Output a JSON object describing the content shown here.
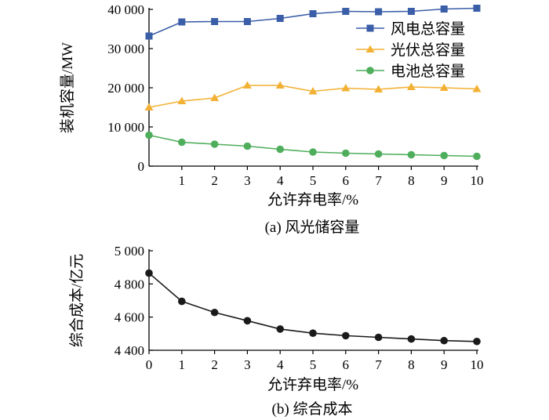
{
  "chart_data": [
    {
      "type": "line",
      "caption": "(a)  风光储容量",
      "xlabel": "允许弃电率/%",
      "ylabel": "装机容量/MW",
      "x": [
        0,
        1,
        2,
        3,
        4,
        5,
        6,
        7,
        8,
        9,
        10
      ],
      "x_tick_labels": [
        "1",
        "2",
        "3",
        "4",
        "5",
        "6",
        "7",
        "8",
        "9",
        "10"
      ],
      "xlim": [
        0,
        10
      ],
      "ylim": [
        0,
        40000
      ],
      "y_ticks": [
        0,
        10000,
        20000,
        30000,
        40000
      ],
      "y_tick_labels": [
        "0",
        "10 000",
        "20 000",
        "30 000",
        "40 000"
      ],
      "grid": false,
      "legend_position": "top-right",
      "series": [
        {
          "name": "风电总容量",
          "marker": "square",
          "color": "#3b5ea8",
          "values": [
            33200,
            36800,
            36900,
            36900,
            37700,
            38900,
            39500,
            39400,
            39500,
            40100,
            40300
          ]
        },
        {
          "name": "光伏总容量",
          "marker": "triangle",
          "color": "#f2b134",
          "values": [
            15000,
            16600,
            17400,
            20600,
            20600,
            19100,
            19900,
            19600,
            20200,
            20000,
            19700
          ]
        },
        {
          "name": "电池总容量",
          "marker": "circle",
          "color": "#4fae5c",
          "values": [
            7900,
            6100,
            5600,
            5100,
            4300,
            3600,
            3300,
            3100,
            2900,
            2700,
            2500
          ]
        }
      ]
    },
    {
      "type": "line",
      "caption": "(b)  综合成本",
      "xlabel": "允许弃电率/%",
      "ylabel": "综合成本/亿元",
      "x": [
        0,
        1,
        2,
        3,
        4,
        5,
        6,
        7,
        8,
        9,
        10
      ],
      "x_tick_labels": [
        "0",
        "1",
        "2",
        "3",
        "4",
        "5",
        "6",
        "7",
        "8",
        "9",
        "10"
      ],
      "xlim": [
        0,
        10
      ],
      "ylim": [
        4400,
        5000
      ],
      "y_ticks": [
        4400,
        4600,
        4800,
        5000
      ],
      "y_tick_labels": [
        "4 400",
        "4 600",
        "4 800",
        "5 000"
      ],
      "grid": false,
      "series": [
        {
          "marker": "circle",
          "color": "#1a1a1a",
          "values": [
            4865,
            4695,
            4628,
            4578,
            4528,
            4503,
            4488,
            4478,
            4468,
            4458,
            4453
          ]
        }
      ]
    }
  ]
}
